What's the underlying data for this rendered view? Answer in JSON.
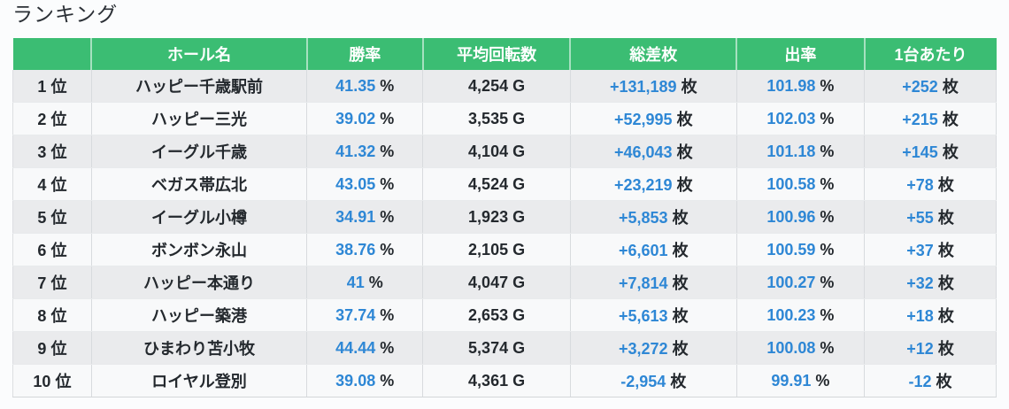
{
  "page": {
    "title": "ランキング"
  },
  "colors": {
    "header_bg": "#3bbd73",
    "header_text": "#ffffff",
    "value_blue": "#2e87d5",
    "text_dark": "#24292e",
    "row_odd_bg": "#eaebed",
    "row_even_bg": "#f8f9fa"
  },
  "table": {
    "columns": [
      {
        "key": "rank",
        "label": ""
      },
      {
        "key": "hall",
        "label": "ホール名"
      },
      {
        "key": "win_rate",
        "label": "勝率"
      },
      {
        "key": "avg_spins",
        "label": "平均回転数"
      },
      {
        "key": "total_diff",
        "label": "総差枚"
      },
      {
        "key": "payout",
        "label": "出率"
      },
      {
        "key": "per_machine",
        "label": "1台あたり"
      }
    ],
    "units": {
      "rank": "位",
      "win_rate": "%",
      "avg_spins": "G",
      "total_diff": "枚",
      "payout": "%",
      "per_machine": "枚"
    },
    "rows": [
      {
        "rank": "1",
        "hall": "ハッピー千歳駅前",
        "win_rate": "41.35",
        "avg_spins": "4,254",
        "total_diff": "+131,189",
        "payout": "101.98",
        "per_machine": "+252"
      },
      {
        "rank": "2",
        "hall": "ハッピー三光",
        "win_rate": "39.02",
        "avg_spins": "3,535",
        "total_diff": "+52,995",
        "payout": "102.03",
        "per_machine": "+215"
      },
      {
        "rank": "3",
        "hall": "イーグル千歳",
        "win_rate": "41.32",
        "avg_spins": "4,104",
        "total_diff": "+46,043",
        "payout": "101.18",
        "per_machine": "+145"
      },
      {
        "rank": "4",
        "hall": "ベガス帯広北",
        "win_rate": "43.05",
        "avg_spins": "4,524",
        "total_diff": "+23,219",
        "payout": "100.58",
        "per_machine": "+78"
      },
      {
        "rank": "5",
        "hall": "イーグル小樽",
        "win_rate": "34.91",
        "avg_spins": "1,923",
        "total_diff": "+5,853",
        "payout": "100.96",
        "per_machine": "+55"
      },
      {
        "rank": "6",
        "hall": "ボンボン永山",
        "win_rate": "38.76",
        "avg_spins": "2,105",
        "total_diff": "+6,601",
        "payout": "100.59",
        "per_machine": "+37"
      },
      {
        "rank": "7",
        "hall": "ハッピー本通り",
        "win_rate": "41",
        "avg_spins": "4,047",
        "total_diff": "+7,814",
        "payout": "100.27",
        "per_machine": "+32"
      },
      {
        "rank": "8",
        "hall": "ハッピー築港",
        "win_rate": "37.74",
        "avg_spins": "2,653",
        "total_diff": "+5,613",
        "payout": "100.23",
        "per_machine": "+18"
      },
      {
        "rank": "9",
        "hall": "ひまわり苫小牧",
        "win_rate": "44.44",
        "avg_spins": "5,374",
        "total_diff": "+3,272",
        "payout": "100.08",
        "per_machine": "+12"
      },
      {
        "rank": "10",
        "hall": "ロイヤル登別",
        "win_rate": "39.08",
        "avg_spins": "4,361",
        "total_diff": "-2,954",
        "payout": "99.91",
        "per_machine": "-12"
      }
    ]
  }
}
